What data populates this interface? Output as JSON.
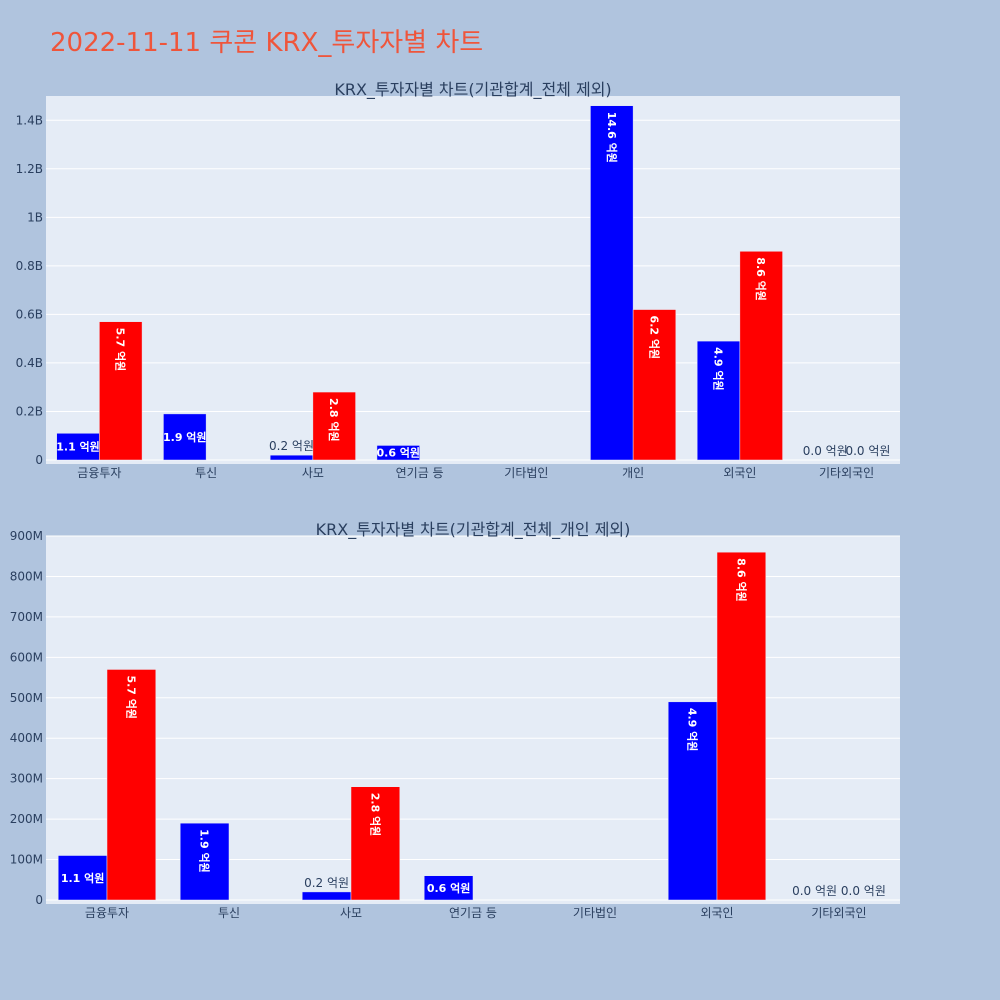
{
  "page_title": "2022-11-11 쿠콘 KRX_투자자별 차트",
  "colors": {
    "buy": "#0000ff",
    "sell": "#ff0000",
    "plot_bg": "#e5ecf6",
    "page_bg": "#b0c4de"
  },
  "chart_data": [
    {
      "type": "bar",
      "title": "KRX_투자자별 차트(기관합계_전체 제외)",
      "categories": [
        "금융투자",
        "투신",
        "사모",
        "연기금 등",
        "기타법인",
        "개인",
        "외국인",
        "기타외국인"
      ],
      "ylim": [
        0,
        1500000000
      ],
      "yticks": [
        0,
        200000000,
        400000000,
        600000000,
        800000000,
        1000000000,
        1200000000,
        1400000000
      ],
      "yticklabels": [
        "0",
        "0.2B",
        "0.4B",
        "0.6B",
        "0.8B",
        "1B",
        "1.2B",
        "1.4B"
      ],
      "series": [
        {
          "color": "#0000ff",
          "values": [
            110000000,
            190000000,
            20000000,
            60000000,
            0,
            1460000000,
            490000000,
            0
          ],
          "labels": [
            "1.1 억원",
            "1.9 억원",
            "0.2 억원",
            "0.6 억원",
            "",
            "14.6 억원",
            "4.9 억원",
            "0.0 억원"
          ]
        },
        {
          "color": "#ff0000",
          "values": [
            570000000,
            0,
            280000000,
            0,
            0,
            620000000,
            860000000,
            0
          ],
          "labels": [
            "5.7 억원",
            "",
            "2.8 억원",
            "",
            "",
            "6.2 억원",
            "8.6 억원",
            "0.0 억원"
          ]
        }
      ],
      "grid": true,
      "legend": "none"
    },
    {
      "type": "bar",
      "title": "KRX_투자자별 차트(기관합계_전체_개인 제외)",
      "categories": [
        "금융투자",
        "투신",
        "사모",
        "연기금 등",
        "기타법인",
        "외국인",
        "기타외국인"
      ],
      "ylim": [
        0,
        900000000
      ],
      "yticks": [
        0,
        100000000,
        200000000,
        300000000,
        400000000,
        500000000,
        600000000,
        700000000,
        800000000,
        900000000
      ],
      "yticklabels": [
        "0",
        "100M",
        "200M",
        "300M",
        "400M",
        "500M",
        "600M",
        "700M",
        "800M",
        "900M"
      ],
      "series": [
        {
          "color": "#0000ff",
          "values": [
            110000000,
            190000000,
            20000000,
            60000000,
            0,
            490000000,
            0
          ],
          "labels": [
            "1.1 억원",
            "1.9 억원",
            "0.2 억원",
            "0.6 억원",
            "",
            "4.9 억원",
            "0.0 억원"
          ]
        },
        {
          "color": "#ff0000",
          "values": [
            570000000,
            0,
            280000000,
            0,
            0,
            860000000,
            0
          ],
          "labels": [
            "5.7 억원",
            "",
            "2.8 억원",
            "",
            "",
            "8.6 억원",
            "0.0 억원"
          ]
        }
      ],
      "grid": true,
      "legend": "none"
    }
  ]
}
